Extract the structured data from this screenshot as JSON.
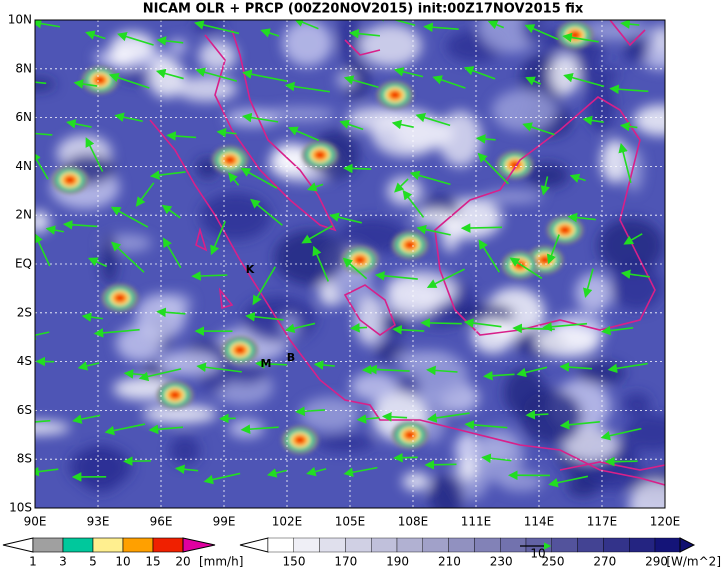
{
  "header": {
    "title": "NICAM OLR + PRCP (00Z20NOV2015) init:00Z17NOV2015 fix"
  },
  "map": {
    "lon_labels": [
      "90E",
      "93E",
      "96E",
      "99E",
      "102E",
      "105E",
      "108E",
      "111E",
      "114E",
      "117E",
      "120E"
    ],
    "lat_labels": [
      "10N",
      "8N",
      "6N",
      "4N",
      "2N",
      "EQ",
      "2S",
      "4S",
      "6S",
      "8S",
      "10S"
    ],
    "stations": [
      {
        "label": "K"
      },
      {
        "label": "M"
      },
      {
        "label": "B"
      }
    ]
  },
  "precip_colorbar": {
    "labels": [
      "1",
      "3",
      "5",
      "10",
      "15",
      "20"
    ],
    "unit": "[mm/h]"
  },
  "olr_colorbar": {
    "labels": [
      "150",
      "170",
      "190",
      "210",
      "230",
      "250",
      "270",
      "290"
    ],
    "unit": "[W/m^2]"
  },
  "vector_reference": {
    "label": "10"
  }
}
